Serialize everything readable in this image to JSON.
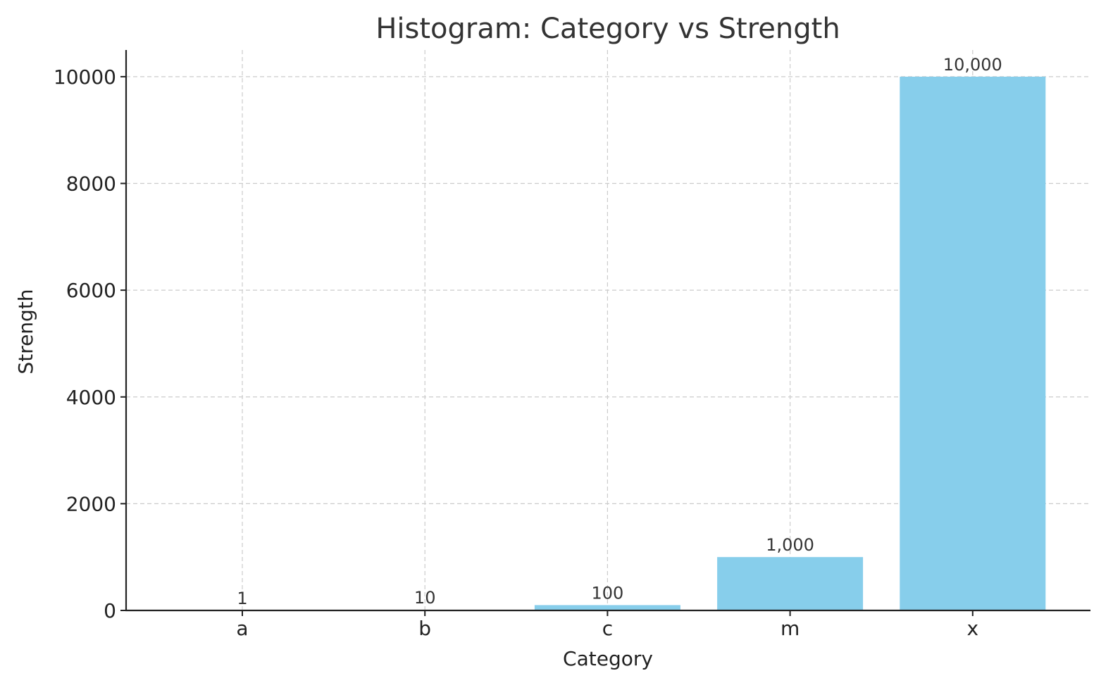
{
  "chart_data": {
    "type": "bar",
    "title": "Histogram: Category vs Strength",
    "xlabel": "Category",
    "ylabel": "Strength",
    "categories": [
      "a",
      "b",
      "c",
      "m",
      "x"
    ],
    "values": [
      1,
      10,
      100,
      1000,
      10000
    ],
    "data_labels": [
      "1",
      "10",
      "100",
      "1,000",
      "10,000"
    ],
    "ylim": [
      0,
      10500
    ],
    "yticks": [
      0,
      2000,
      4000,
      6000,
      8000,
      10000
    ],
    "ytick_labels": [
      "0",
      "2000",
      "4000",
      "6000",
      "8000",
      "10000"
    ],
    "grid": true,
    "bar_color": "#87CEEB"
  }
}
